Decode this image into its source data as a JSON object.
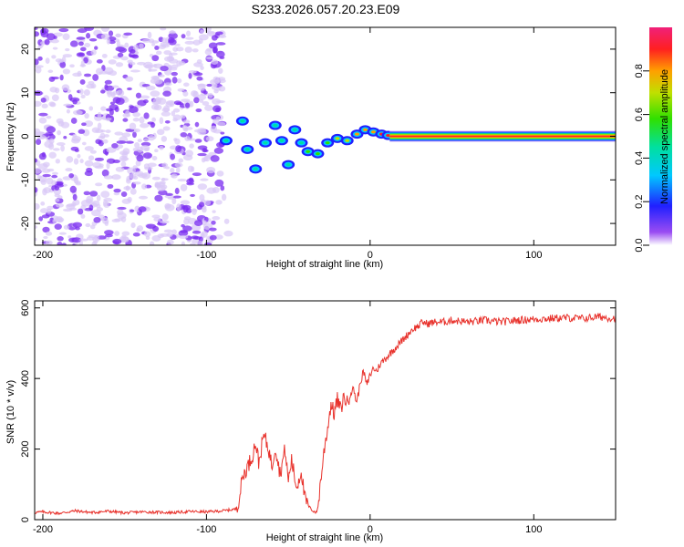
{
  "title": "S233.2026.057.20.23.E09",
  "colors": {
    "snr_line": "#e8322c",
    "blob": "#7a2cf0",
    "blob_light": "#d9c8f7",
    "axis": "#000000"
  },
  "chart_data": [
    {
      "type": "heatmap",
      "title": "S233.2026.057.20.23.E09",
      "xlabel": "Height of straight line (km)",
      "ylabel": "Frequency (Hz)",
      "xlim": [
        -205,
        150
      ],
      "ylim": [
        -25,
        25
      ],
      "xticks": [
        -200,
        -100,
        0,
        100
      ],
      "xtick_labels": [
        "-200",
        "-100",
        "0",
        "100"
      ],
      "yticks": [
        -20,
        -10,
        0,
        10,
        20
      ],
      "ytick_labels": [
        "-20",
        "-10",
        "0",
        "10",
        "20"
      ],
      "noise_region_x": [
        -205,
        -90
      ],
      "dominant_ridge": {
        "x_start": 12,
        "x_end": 150,
        "frequency": 0.0,
        "amplitude": 1.0
      },
      "ridge_track": [
        {
          "x": -88,
          "y": -1.0,
          "a": 0.25
        },
        {
          "x": -78,
          "y": 3.5,
          "a": 0.3
        },
        {
          "x": -75,
          "y": -3.0,
          "a": 0.3
        },
        {
          "x": -70,
          "y": -7.5,
          "a": 0.3
        },
        {
          "x": -64,
          "y": -1.5,
          "a": 0.3
        },
        {
          "x": -58,
          "y": 2.5,
          "a": 0.28
        },
        {
          "x": -54,
          "y": -1.0,
          "a": 0.3
        },
        {
          "x": -50,
          "y": -6.5,
          "a": 0.25
        },
        {
          "x": -46,
          "y": 1.5,
          "a": 0.28
        },
        {
          "x": -42,
          "y": -1.5,
          "a": 0.3
        },
        {
          "x": -38,
          "y": -3.5,
          "a": 0.32
        },
        {
          "x": -32,
          "y": -4.0,
          "a": 0.35
        },
        {
          "x": -26,
          "y": -1.5,
          "a": 0.4
        },
        {
          "x": -20,
          "y": -0.5,
          "a": 0.45
        },
        {
          "x": -14,
          "y": -1.0,
          "a": 0.5
        },
        {
          "x": -8,
          "y": 0.5,
          "a": 0.55
        },
        {
          "x": -3,
          "y": 1.5,
          "a": 0.6
        },
        {
          "x": 2,
          "y": 1.0,
          "a": 0.65
        },
        {
          "x": 7,
          "y": 0.5,
          "a": 0.7
        },
        {
          "x": 11,
          "y": 0.2,
          "a": 0.75
        }
      ],
      "colorbar": {
        "label": "Normalized spectral amplitude",
        "range": [
          0,
          1
        ],
        "ticks": [
          0.0,
          0.2,
          0.4,
          0.6,
          0.8
        ],
        "tick_labels": [
          "0.0",
          "0.2",
          "0.4",
          "0.6",
          "0.8"
        ]
      }
    },
    {
      "type": "line",
      "xlabel": "Height of straight line (km)",
      "ylabel": "SNR (10 * v/v)",
      "xlim": [
        -205,
        150
      ],
      "ylim": [
        0,
        620
      ],
      "xticks": [
        -200,
        -100,
        0,
        100
      ],
      "xtick_labels": [
        "-200",
        "-100",
        "0",
        "100"
      ],
      "yticks": [
        0,
        200,
        400,
        600
      ],
      "ytick_labels": [
        "0",
        "200",
        "400",
        "600"
      ],
      "series": [
        {
          "name": "SNR",
          "x": [
            -205,
            -200,
            -190,
            -180,
            -170,
            -160,
            -150,
            -140,
            -130,
            -120,
            -110,
            -100,
            -90,
            -82,
            -80,
            -78,
            -75,
            -72,
            -70,
            -68,
            -65,
            -62,
            -60,
            -58,
            -55,
            -52,
            -50,
            -48,
            -45,
            -42,
            -40,
            -38,
            -35,
            -33,
            -32,
            -30,
            -28,
            -26,
            -25,
            -24,
            -22,
            -20,
            -18,
            -16,
            -14,
            -12,
            -10,
            -8,
            -6,
            -4,
            -2,
            0,
            2,
            4,
            6,
            8,
            10,
            12,
            14,
            16,
            18,
            20,
            22,
            24,
            26,
            28,
            30,
            32,
            35,
            40,
            45,
            50,
            60,
            70,
            80,
            90,
            100,
            110,
            120,
            130,
            140,
            150
          ],
          "y": [
            20,
            22,
            18,
            25,
            20,
            24,
            19,
            22,
            21,
            20,
            23,
            22,
            25,
            30,
            60,
            120,
            150,
            180,
            220,
            160,
            240,
            200,
            150,
            210,
            130,
            200,
            110,
            170,
            90,
            140,
            60,
            40,
            25,
            20,
            30,
            120,
            200,
            260,
            290,
            330,
            300,
            340,
            310,
            350,
            330,
            360,
            370,
            330,
            390,
            420,
            380,
            410,
            430,
            420,
            440,
            450,
            460,
            470,
            480,
            490,
            500,
            510,
            520,
            530,
            540,
            545,
            550,
            560,
            555,
            560,
            560,
            565,
            560,
            565,
            560,
            565,
            568,
            570,
            572,
            570,
            575,
            570
          ]
        }
      ]
    }
  ]
}
